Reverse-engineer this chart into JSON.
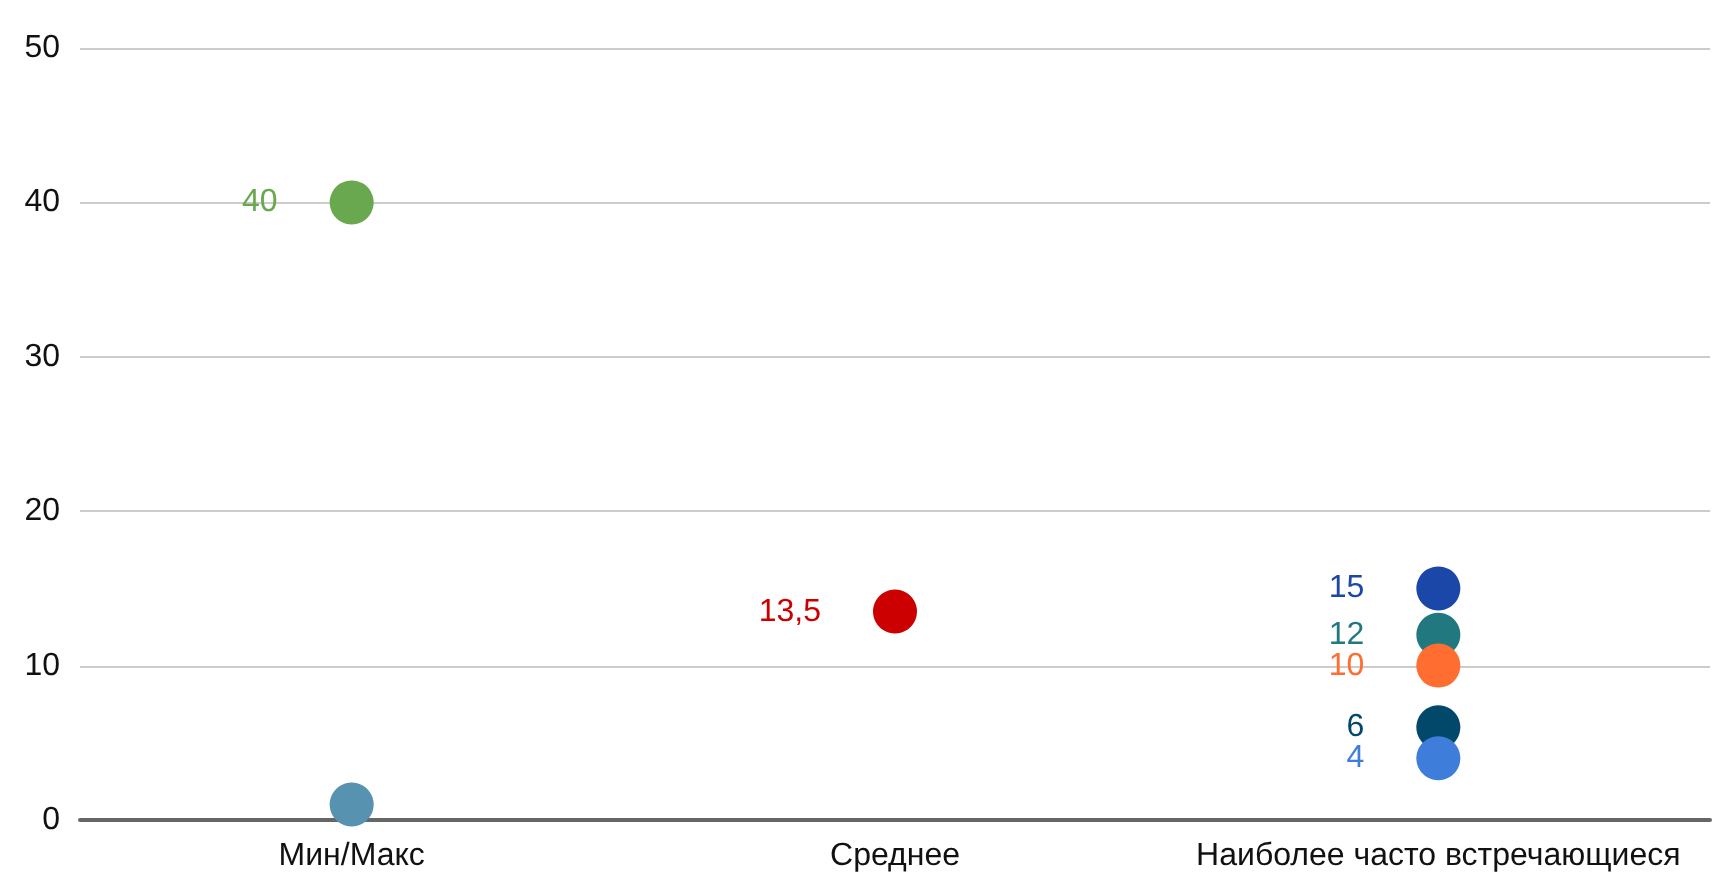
{
  "chart_data": {
    "type": "scatter",
    "categories": [
      "Мин/Макс",
      "Среднее",
      "Наиболее часто встречающиеся"
    ],
    "series": [
      {
        "x": [
          "Мин/Макс"
        ],
        "values": [
          40
        ],
        "color": "#6aa84f",
        "value_labels": [
          "40"
        ]
      },
      {
        "x": [
          "Мин/Макс"
        ],
        "values": [
          1
        ],
        "color": "#5792b0",
        "value_labels": [
          null
        ]
      },
      {
        "x": [
          "Среднее"
        ],
        "values": [
          13.5
        ],
        "color": "#cc0000",
        "value_labels": [
          "13,5"
        ]
      },
      {
        "x": [
          "Наиболее часто встречающиеся"
        ],
        "values": [
          15
        ],
        "color": "#1a47a8",
        "value_labels": [
          "15"
        ]
      },
      {
        "x": [
          "Наиболее часто встречающиеся"
        ],
        "values": [
          12
        ],
        "color": "#21797f",
        "value_labels": [
          "12"
        ]
      },
      {
        "x": [
          "Наиболее часто встречающиеся"
        ],
        "values": [
          10
        ],
        "color": "#ff6d31",
        "value_labels": [
          "10"
        ]
      },
      {
        "x": [
          "Наиболее часто встречающиеся"
        ],
        "values": [
          6
        ],
        "color": "#02486b",
        "value_labels": [
          "6"
        ]
      },
      {
        "x": [
          "Наиболее часто встречающиеся"
        ],
        "values": [
          4
        ],
        "color": "#3f7ddb",
        "value_labels": [
          "4"
        ]
      }
    ],
    "ylim": [
      0,
      50
    ],
    "yticks": [
      0,
      10,
      20,
      30,
      40,
      50
    ],
    "grid": "y",
    "marker": "circle"
  }
}
